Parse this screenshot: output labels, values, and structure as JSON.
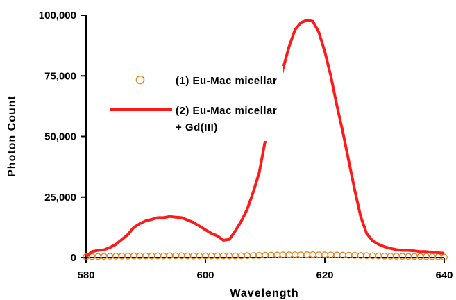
{
  "chart_data": {
    "type": "line",
    "title": "",
    "xlabel": "Wavelength",
    "ylabel": "Photon Count",
    "xlim": [
      580,
      640
    ],
    "ylim": [
      0,
      100000
    ],
    "x_ticks": [
      {
        "value": 580,
        "label": "580"
      },
      {
        "value": 600,
        "label": "600"
      },
      {
        "value": 620,
        "label": "620"
      },
      {
        "value": 640,
        "label": "640"
      }
    ],
    "y_ticks": [
      {
        "value": 0,
        "label": "0"
      },
      {
        "value": 25000,
        "label": "25,000"
      },
      {
        "value": 50000,
        "label": "50,000"
      },
      {
        "value": 75000,
        "label": "75,000"
      },
      {
        "value": 100000,
        "label": "100,000"
      }
    ],
    "grid": false,
    "legend_position": "upper-left-inside",
    "series": [
      {
        "name": "(1) Eu-Mac micellar",
        "style": "markers-open-circle",
        "color": "#e8821e",
        "x": [
          580,
          581,
          582,
          583,
          584,
          585,
          586,
          587,
          588,
          589,
          590,
          591,
          592,
          593,
          594,
          595,
          596,
          597,
          598,
          599,
          600,
          601,
          602,
          603,
          604,
          605,
          606,
          607,
          608,
          609,
          610,
          611,
          612,
          613,
          614,
          615,
          616,
          617,
          618,
          619,
          620,
          621,
          622,
          623,
          624,
          625,
          626,
          627,
          628,
          629,
          630,
          631,
          632,
          633,
          634,
          635,
          636,
          637,
          638,
          639,
          640
        ],
        "y": [
          300,
          400,
          450,
          500,
          550,
          600,
          650,
          650,
          700,
          700,
          700,
          700,
          700,
          700,
          750,
          750,
          750,
          700,
          700,
          700,
          700,
          700,
          700,
          700,
          700,
          700,
          750,
          800,
          850,
          900,
          950,
          1000,
          1050,
          1100,
          1150,
          1150,
          1150,
          1200,
          1200,
          1150,
          1100,
          1100,
          1050,
          1000,
          950,
          900,
          850,
          800,
          750,
          700,
          650,
          600,
          600,
          550,
          500,
          500,
          450,
          450,
          400,
          350,
          200
        ]
      },
      {
        "name": "(2) Eu-Mac micellar",
        "name_line2": "+ Gd(III)",
        "style": "line",
        "color": "#ff1a1a",
        "x": [
          580,
          581,
          582,
          583,
          584,
          585,
          586,
          587,
          588,
          589,
          590,
          591,
          592,
          593,
          594,
          595,
          596,
          597,
          598,
          599,
          600,
          601,
          602,
          603,
          604,
          605,
          606,
          607,
          608,
          609,
          610,
          611,
          612,
          613,
          614,
          615,
          616,
          617,
          618,
          619,
          620,
          621,
          622,
          623,
          624,
          625,
          626,
          627,
          628,
          629,
          630,
          631,
          632,
          633,
          634,
          635,
          636,
          637,
          638,
          639,
          640
        ],
        "y": [
          500,
          2500,
          3000,
          3200,
          4200,
          5500,
          7500,
          9500,
          12500,
          14000,
          15200,
          15800,
          16500,
          16500,
          17000,
          16700,
          16500,
          15500,
          14500,
          13000,
          11500,
          10000,
          9000,
          7200,
          7500,
          11000,
          15000,
          20000,
          27000,
          35000,
          48000,
          58000,
          68000,
          78000,
          87000,
          94000,
          97000,
          98000,
          97500,
          93000,
          85000,
          75000,
          63000,
          52000,
          40000,
          28000,
          17000,
          10000,
          7000,
          5500,
          4500,
          3800,
          3300,
          3000,
          3000,
          2800,
          2500,
          2500,
          2200,
          2000,
          1800
        ]
      }
    ]
  }
}
